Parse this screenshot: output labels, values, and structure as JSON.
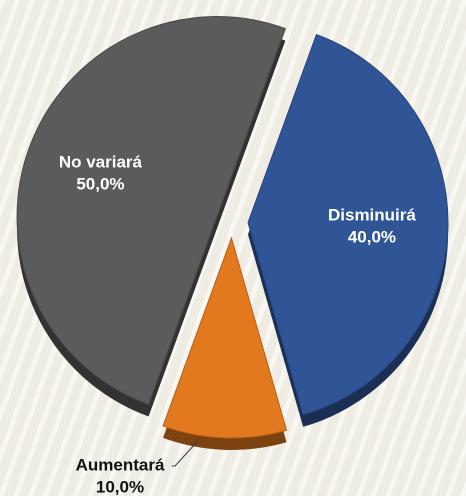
{
  "chart_data": {
    "type": "pie",
    "categories": [
      "Disminuirá",
      "Aumentará",
      "No variará"
    ],
    "values": [
      40,
      10,
      50
    ],
    "value_labels": [
      "40,0%",
      "10,0%",
      "50,0%"
    ],
    "colors": [
      "#2f5597",
      "#e2791f",
      "#5b5b5b"
    ]
  }
}
